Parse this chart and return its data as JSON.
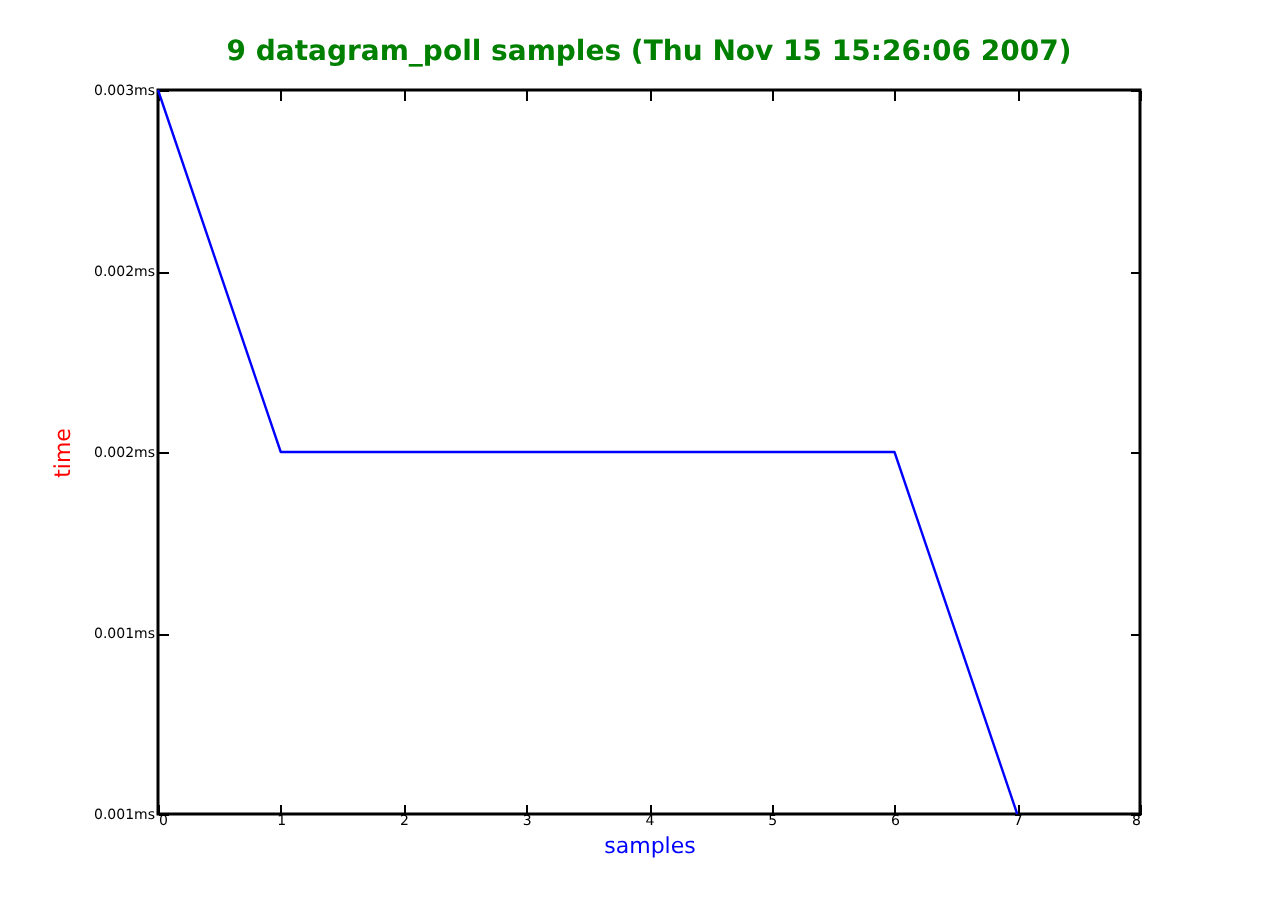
{
  "chart_data": {
    "type": "line",
    "title": "9 datagram_poll samples (Thu Nov 15 15:26:06 2007)",
    "xlabel": "samples",
    "ylabel": "time",
    "x": [
      0,
      1,
      2,
      3,
      4,
      5,
      6,
      7
    ],
    "series": [
      {
        "color": "#0000ff",
        "values": [
          0.003,
          0.002,
          0.002,
          0.002,
          0.002,
          0.002,
          0.002,
          0.001
        ]
      }
    ],
    "xlim": [
      0,
      8
    ],
    "xticks": [
      0,
      1,
      2,
      3,
      4,
      5,
      6,
      7,
      8
    ],
    "ylim": [
      0.001,
      0.003
    ],
    "yticks": [
      {
        "value": 0.001,
        "label": "0.001ms"
      },
      {
        "value": 0.0015,
        "label": "0.001ms"
      },
      {
        "value": 0.002,
        "label": "0.002ms"
      },
      {
        "value": 0.0025,
        "label": "0.002ms"
      },
      {
        "value": 0.003,
        "label": "0.003ms"
      }
    ],
    "grid": false,
    "marker": "none",
    "line_style": "solid"
  }
}
